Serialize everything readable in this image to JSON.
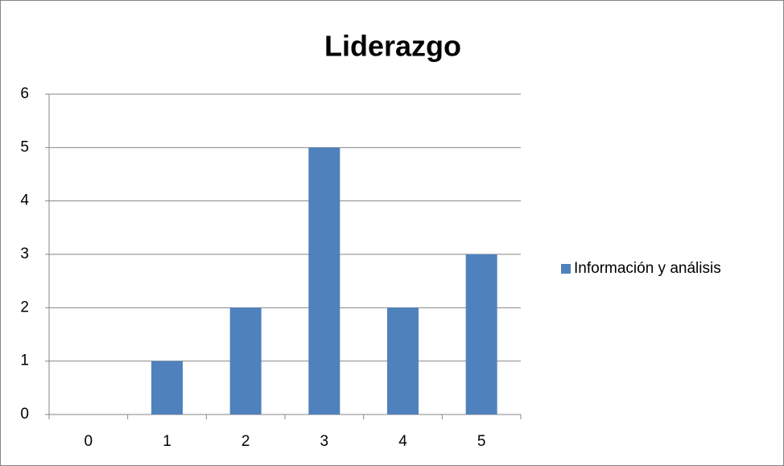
{
  "chart_data": {
    "type": "bar",
    "title": "Liderazgo",
    "categories": [
      "0",
      "1",
      "2",
      "3",
      "4",
      "5"
    ],
    "series": [
      {
        "name": "Información y análisis",
        "color": "#4f81bd",
        "values": [
          0,
          1,
          2,
          5,
          2,
          3
        ]
      }
    ],
    "ylim": [
      0,
      6
    ],
    "yticks": [
      0,
      1,
      2,
      3,
      4,
      5,
      6
    ],
    "grid": true,
    "legend": "right"
  }
}
